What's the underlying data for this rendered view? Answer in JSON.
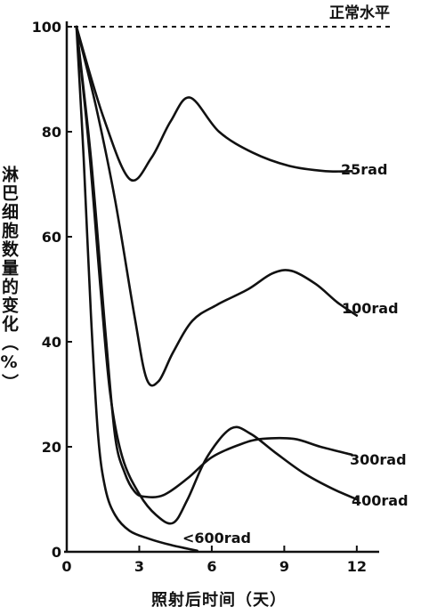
{
  "chart_data": {
    "type": "line",
    "xlabel": "照射后时间（天）",
    "ylabel": "淋巴细胞数量的变化（%）",
    "xlim": [
      0,
      13
    ],
    "ylim": [
      0,
      100
    ],
    "x_ticks": [
      0,
      3,
      6,
      9,
      12
    ],
    "y_ticks": [
      0,
      20,
      40,
      60,
      80,
      100
    ],
    "reference_line": {
      "label": "正常水平",
      "y": 100,
      "style": "dashed"
    },
    "series": [
      {
        "name": "25rad",
        "x": [
          0.4,
          1.5,
          2.6,
          3.5,
          4.3,
          5.1,
          6.3,
          7.7,
          9.2,
          10.7,
          11.8
        ],
        "y": [
          100,
          83,
          71,
          75,
          82,
          86.5,
          80,
          76,
          73.5,
          72.5,
          72.5
        ]
      },
      {
        "name": "100rad",
        "x": [
          0.4,
          1.2,
          2.0,
          2.8,
          3.3,
          3.8,
          4.4,
          5.2,
          6.2,
          7.5,
          8.5,
          9.3,
          10.3,
          11.2,
          12.0
        ],
        "y": [
          100,
          85,
          67,
          45,
          33,
          32.5,
          38,
          44,
          47,
          50,
          53,
          53.5,
          51,
          47.5,
          45
        ]
      },
      {
        "name": "300rad",
        "x": [
          0.4,
          1.0,
          1.6,
          2.0,
          2.4,
          2.8,
          3.2,
          4.0,
          5.0,
          6.0,
          7.2,
          8.1,
          9.4,
          10.5,
          11.8
        ],
        "y": [
          100,
          75,
          42,
          22,
          15,
          11.5,
          10.5,
          10.8,
          14,
          18,
          20.5,
          21.5,
          21.5,
          20,
          18.5
        ]
      },
      {
        "name": "400rad",
        "x": [
          0.4,
          0.9,
          1.4,
          1.8,
          2.3,
          3.0,
          3.7,
          4.4,
          5.0,
          5.8,
          6.8,
          7.6,
          8.6,
          9.8,
          11.0,
          12.0
        ],
        "y": [
          100,
          78,
          50,
          30,
          18,
          11,
          7,
          5.5,
          10,
          18,
          23.5,
          22.5,
          19,
          15,
          12,
          10
        ]
      },
      {
        "name": "<600rad",
        "x": [
          0.4,
          0.7,
          1.0,
          1.3,
          1.6,
          2.0,
          2.6,
          3.4,
          4.3,
          5.0,
          5.4
        ],
        "y": [
          100,
          75,
          45,
          22,
          12,
          7,
          4,
          2.5,
          1.3,
          0.6,
          0.2
        ]
      }
    ],
    "grid": false,
    "legend": "inline labels at right end of each curve"
  }
}
